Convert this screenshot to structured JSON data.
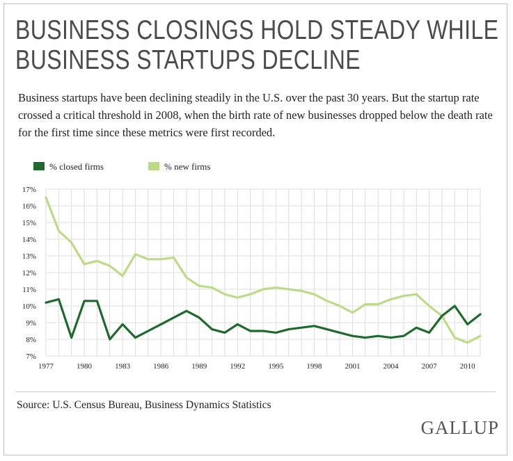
{
  "title_lines": [
    "BUSINESS CLOSINGS HOLD STEADY WHILE",
    "BUSINESS STARTUPS DECLINE"
  ],
  "subtitle": "Business startups have been declining steadily in the U.S. over the past 30 years. But the startup rate crossed a critical threshold in 2008, when the birth rate of new businesses dropped below the death rate for the first time since these metrics were first recorded.",
  "source": "Source: U.S. Census Bureau, Business Dynamics Statistics",
  "logo": "GALLUP",
  "colors": {
    "closed": "#1d6b2b",
    "new": "#bcdb86",
    "grid": "#dedede"
  },
  "chart_data": {
    "type": "line",
    "title": "BUSINESS CLOSINGS HOLD STEADY WHILE BUSINESS STARTUPS DECLINE",
    "xlabel": "",
    "ylabel": "",
    "x": [
      1977,
      1978,
      1979,
      1980,
      1981,
      1982,
      1983,
      1984,
      1985,
      1986,
      1987,
      1988,
      1989,
      1990,
      1991,
      1992,
      1993,
      1994,
      1995,
      1996,
      1997,
      1998,
      1999,
      2000,
      2001,
      2002,
      2003,
      2004,
      2005,
      2006,
      2007,
      2008,
      2009,
      2010,
      2011
    ],
    "x_ticks": [
      "1977",
      "1980",
      "1983",
      "1986",
      "1989",
      "1992",
      "1995",
      "1998",
      "2001",
      "2004",
      "2007",
      "2010"
    ],
    "y_ticks": [
      "17%",
      "16%",
      "15%",
      "14%",
      "13%",
      "12%",
      "11%",
      "10%",
      "9%",
      "8%",
      "7%"
    ],
    "ylim": [
      7,
      17
    ],
    "grid": true,
    "legend_position": "top-left",
    "series": [
      {
        "name": "% closed firms",
        "values": [
          10.2,
          10.4,
          8.1,
          10.3,
          10.3,
          8.0,
          8.9,
          8.1,
          8.5,
          8.9,
          9.3,
          9.7,
          9.3,
          8.6,
          8.4,
          8.9,
          8.5,
          8.5,
          8.4,
          8.6,
          8.7,
          8.8,
          8.6,
          8.4,
          8.2,
          8.1,
          8.2,
          8.1,
          8.2,
          8.7,
          8.4,
          9.4,
          10.0,
          8.9,
          9.5
        ]
      },
      {
        "name": "% new firms",
        "values": [
          16.5,
          14.5,
          13.8,
          12.5,
          12.7,
          12.4,
          11.8,
          13.1,
          12.8,
          12.8,
          12.9,
          11.7,
          11.2,
          11.1,
          10.7,
          10.5,
          10.7,
          11.0,
          11.1,
          11.0,
          10.9,
          10.7,
          10.3,
          10.0,
          9.6,
          10.1,
          10.1,
          10.4,
          10.6,
          10.7,
          10.0,
          9.4,
          8.1,
          7.8,
          8.2
        ]
      }
    ]
  }
}
